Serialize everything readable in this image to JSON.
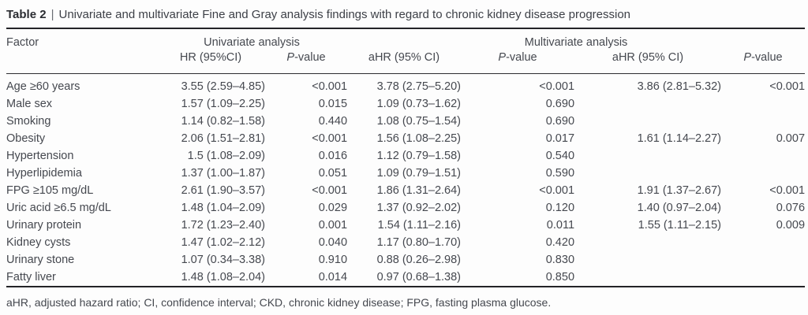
{
  "table": {
    "label": "Table 2",
    "separator": "|",
    "title": "Univariate and multivariate Fine and Gray analysis findings with regard to chronic kidney disease progression",
    "headers": {
      "factor": "Factor",
      "uni_group": "Univariate analysis",
      "multi_group": "Multivariate analysis",
      "uni_hr": "HR (95%CI)",
      "ahr": "aHR (95% CI)",
      "p_italic": "P",
      "p_rest": "-value"
    },
    "rows": [
      {
        "factor": "Age ≥60 years",
        "uni_hr": "3.55 (2.59–4.85)",
        "uni_p": "<0.001",
        "m1_ahr": "3.78 (2.75–5.20)",
        "m1_p": "<0.001",
        "m2_ahr": "3.86 (2.81–5.32)",
        "m2_p": "<0.001"
      },
      {
        "factor": "Male sex",
        "uni_hr": "1.57 (1.09–2.25)",
        "uni_p": "0.015",
        "m1_ahr": "1.09 (0.73–1.62)",
        "m1_p": "0.690",
        "m2_ahr": "",
        "m2_p": ""
      },
      {
        "factor": "Smoking",
        "uni_hr": "1.14 (0.82–1.58)",
        "uni_p": "0.440",
        "m1_ahr": "1.08 (0.75–1.54)",
        "m1_p": "0.690",
        "m2_ahr": "",
        "m2_p": ""
      },
      {
        "factor": "Obesity",
        "uni_hr": "2.06 (1.51–2.81)",
        "uni_p": "<0.001",
        "m1_ahr": "1.56 (1.08–2.25)",
        "m1_p": "0.017",
        "m2_ahr": "1.61 (1.14–2.27)",
        "m2_p": "0.007"
      },
      {
        "factor": "Hypertension",
        "uni_hr": "1.5 (1.08–2.09)",
        "uni_p": "0.016",
        "m1_ahr": "1.12 (0.79–1.58)",
        "m1_p": "0.540",
        "m2_ahr": "",
        "m2_p": ""
      },
      {
        "factor": "Hyperlipidemia",
        "uni_hr": "1.37 (1.00–1.87)",
        "uni_p": "0.051",
        "m1_ahr": "1.09 (0.79–1.51)",
        "m1_p": "0.590",
        "m2_ahr": "",
        "m2_p": ""
      },
      {
        "factor": "FPG ≥105 mg/dL",
        "uni_hr": "2.61 (1.90–3.57)",
        "uni_p": "<0.001",
        "m1_ahr": "1.86 (1.31–2.64)",
        "m1_p": "<0.001",
        "m2_ahr": "1.91 (1.37–2.67)",
        "m2_p": "<0.001"
      },
      {
        "factor": "Uric acid ≥6.5 mg/dL",
        "uni_hr": "1.48 (1.04–2.09)",
        "uni_p": "0.029",
        "m1_ahr": "1.37 (0.92–2.02)",
        "m1_p": "0.120",
        "m2_ahr": "1.40 (0.97–2.04)",
        "m2_p": "0.076"
      },
      {
        "factor": "Urinary protein",
        "uni_hr": "1.72 (1.23–2.40)",
        "uni_p": "0.001",
        "m1_ahr": "1.54 (1.11–2.16)",
        "m1_p": "0.011",
        "m2_ahr": "1.55 (1.11–2.15)",
        "m2_p": "0.009"
      },
      {
        "factor": "Kidney cysts",
        "uni_hr": "1.47 (1.02–2.12)",
        "uni_p": "0.040",
        "m1_ahr": "1.17 (0.80–1.70)",
        "m1_p": "0.420",
        "m2_ahr": "",
        "m2_p": ""
      },
      {
        "factor": "Urinary stone",
        "uni_hr": "1.07 (0.34–3.38)",
        "uni_p": "0.910",
        "m1_ahr": "0.88 (0.26–2.98)",
        "m1_p": "0.830",
        "m2_ahr": "",
        "m2_p": ""
      },
      {
        "factor": "Fatty liver",
        "uni_hr": "1.48 (1.08–2.04)",
        "uni_p": "0.014",
        "m1_ahr": "0.97 (0.68–1.38)",
        "m1_p": "0.850",
        "m2_ahr": "",
        "m2_p": ""
      }
    ],
    "footnote": "aHR, adjusted hazard ratio; CI, confidence interval; CKD, chronic kidney disease; FPG, fasting plasma glucose."
  },
  "colors": {
    "text": "#45484f",
    "rule": "#232327",
    "background": "#fdfdfd"
  }
}
